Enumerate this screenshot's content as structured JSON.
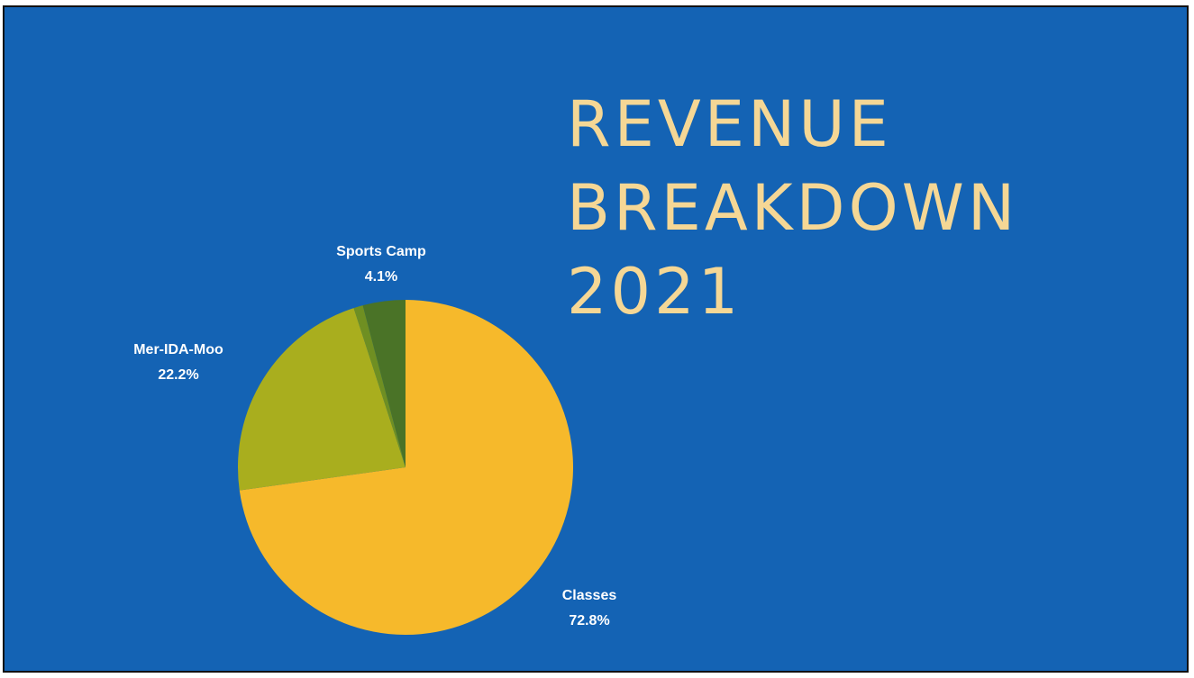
{
  "slide": {
    "title_lines": [
      "REVENUE",
      "BREAKDOWN",
      "2021"
    ]
  },
  "colors": {
    "background": "#1463b4",
    "title": "#f5d795",
    "label": "#ffffff"
  },
  "chart_data": {
    "type": "pie",
    "title": "REVENUE BREAKDOWN 2021",
    "slices": [
      {
        "label": "Classes",
        "value": 72.8,
        "value_label": "72.8%",
        "color": "#f6b92b"
      },
      {
        "label": "Mer-IDA-Moo",
        "value": 22.2,
        "value_label": "22.2%",
        "color": "#a9ae1e"
      },
      {
        "label": "",
        "value": 0.9,
        "value_label": "",
        "color": "#6f8f22"
      },
      {
        "label": "Sports Camp",
        "value": 4.1,
        "value_label": "4.1%",
        "color": "#4a7327"
      }
    ],
    "legend": "none"
  }
}
